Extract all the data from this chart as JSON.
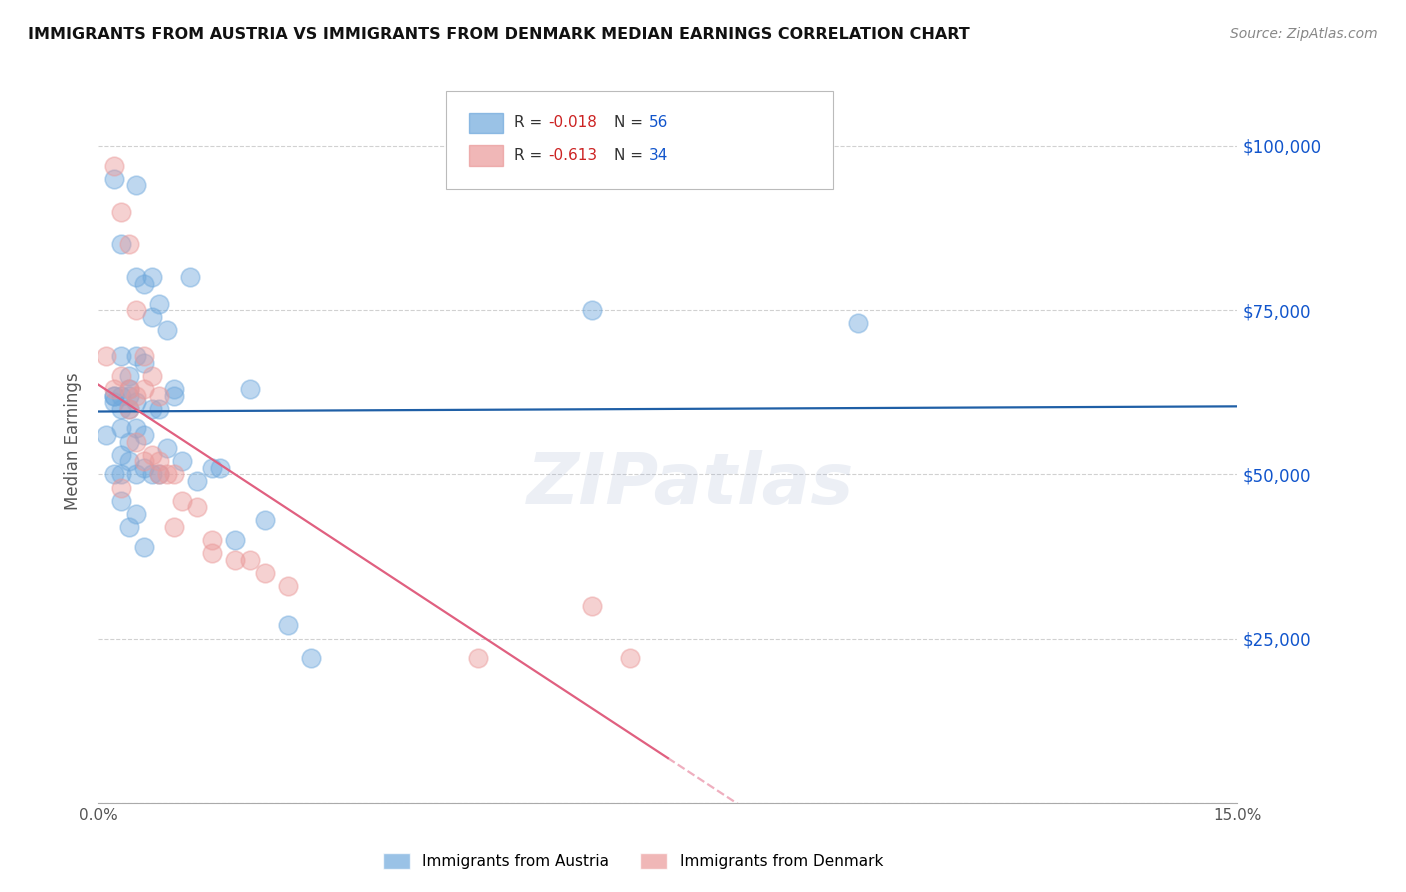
{
  "title": "IMMIGRANTS FROM AUSTRIA VS IMMIGRANTS FROM DENMARK MEDIAN EARNINGS CORRELATION CHART",
  "source": "Source: ZipAtlas.com",
  "ylabel": "Median Earnings",
  "y_ticks": [
    0,
    25000,
    50000,
    75000,
    100000
  ],
  "x_range": [
    0.0,
    0.15
  ],
  "y_range": [
    0,
    110000
  ],
  "austria_color": "#6fa8dc",
  "denmark_color": "#ea9999",
  "trend_austria_color": "#1f5fa6",
  "trend_denmark_color": "#e06080",
  "R_austria": "-0.018",
  "N_austria": "56",
  "R_denmark": "-0.613",
  "N_denmark": "34",
  "austria_scatter_x": [
    0.001,
    0.002,
    0.002,
    0.002,
    0.002,
    0.002,
    0.003,
    0.003,
    0.003,
    0.003,
    0.003,
    0.003,
    0.003,
    0.003,
    0.004,
    0.004,
    0.004,
    0.004,
    0.004,
    0.004,
    0.004,
    0.005,
    0.005,
    0.005,
    0.005,
    0.005,
    0.005,
    0.005,
    0.006,
    0.006,
    0.006,
    0.006,
    0.007,
    0.007,
    0.007,
    0.007,
    0.008,
    0.008,
    0.008,
    0.009,
    0.009,
    0.01,
    0.01,
    0.011,
    0.012,
    0.013,
    0.015,
    0.016,
    0.018,
    0.02,
    0.022,
    0.025,
    0.028,
    0.065,
    0.1,
    0.006
  ],
  "austria_scatter_y": [
    56000,
    95000,
    62000,
    62000,
    61000,
    50000,
    85000,
    68000,
    62000,
    60000,
    57000,
    53000,
    50000,
    46000,
    65000,
    63000,
    62000,
    60000,
    55000,
    52000,
    42000,
    94000,
    80000,
    68000,
    61000,
    57000,
    50000,
    44000,
    79000,
    67000,
    56000,
    51000,
    80000,
    74000,
    60000,
    50000,
    76000,
    60000,
    50000,
    72000,
    54000,
    63000,
    62000,
    52000,
    80000,
    49000,
    51000,
    51000,
    40000,
    63000,
    43000,
    27000,
    22000,
    75000,
    73000,
    39000
  ],
  "denmark_scatter_x": [
    0.001,
    0.002,
    0.002,
    0.003,
    0.003,
    0.003,
    0.004,
    0.004,
    0.004,
    0.005,
    0.005,
    0.005,
    0.006,
    0.006,
    0.006,
    0.007,
    0.007,
    0.008,
    0.008,
    0.008,
    0.009,
    0.01,
    0.01,
    0.011,
    0.013,
    0.015,
    0.015,
    0.018,
    0.02,
    0.022,
    0.025,
    0.05,
    0.065,
    0.07
  ],
  "denmark_scatter_y": [
    68000,
    97000,
    63000,
    90000,
    65000,
    48000,
    85000,
    63000,
    60000,
    75000,
    62000,
    55000,
    68000,
    63000,
    52000,
    65000,
    53000,
    62000,
    52000,
    50000,
    50000,
    50000,
    42000,
    46000,
    45000,
    40000,
    38000,
    37000,
    37000,
    35000,
    33000,
    22000,
    30000,
    22000
  ],
  "watermark": "ZIPatlas",
  "background_color": "#ffffff",
  "grid_color": "#cccccc"
}
